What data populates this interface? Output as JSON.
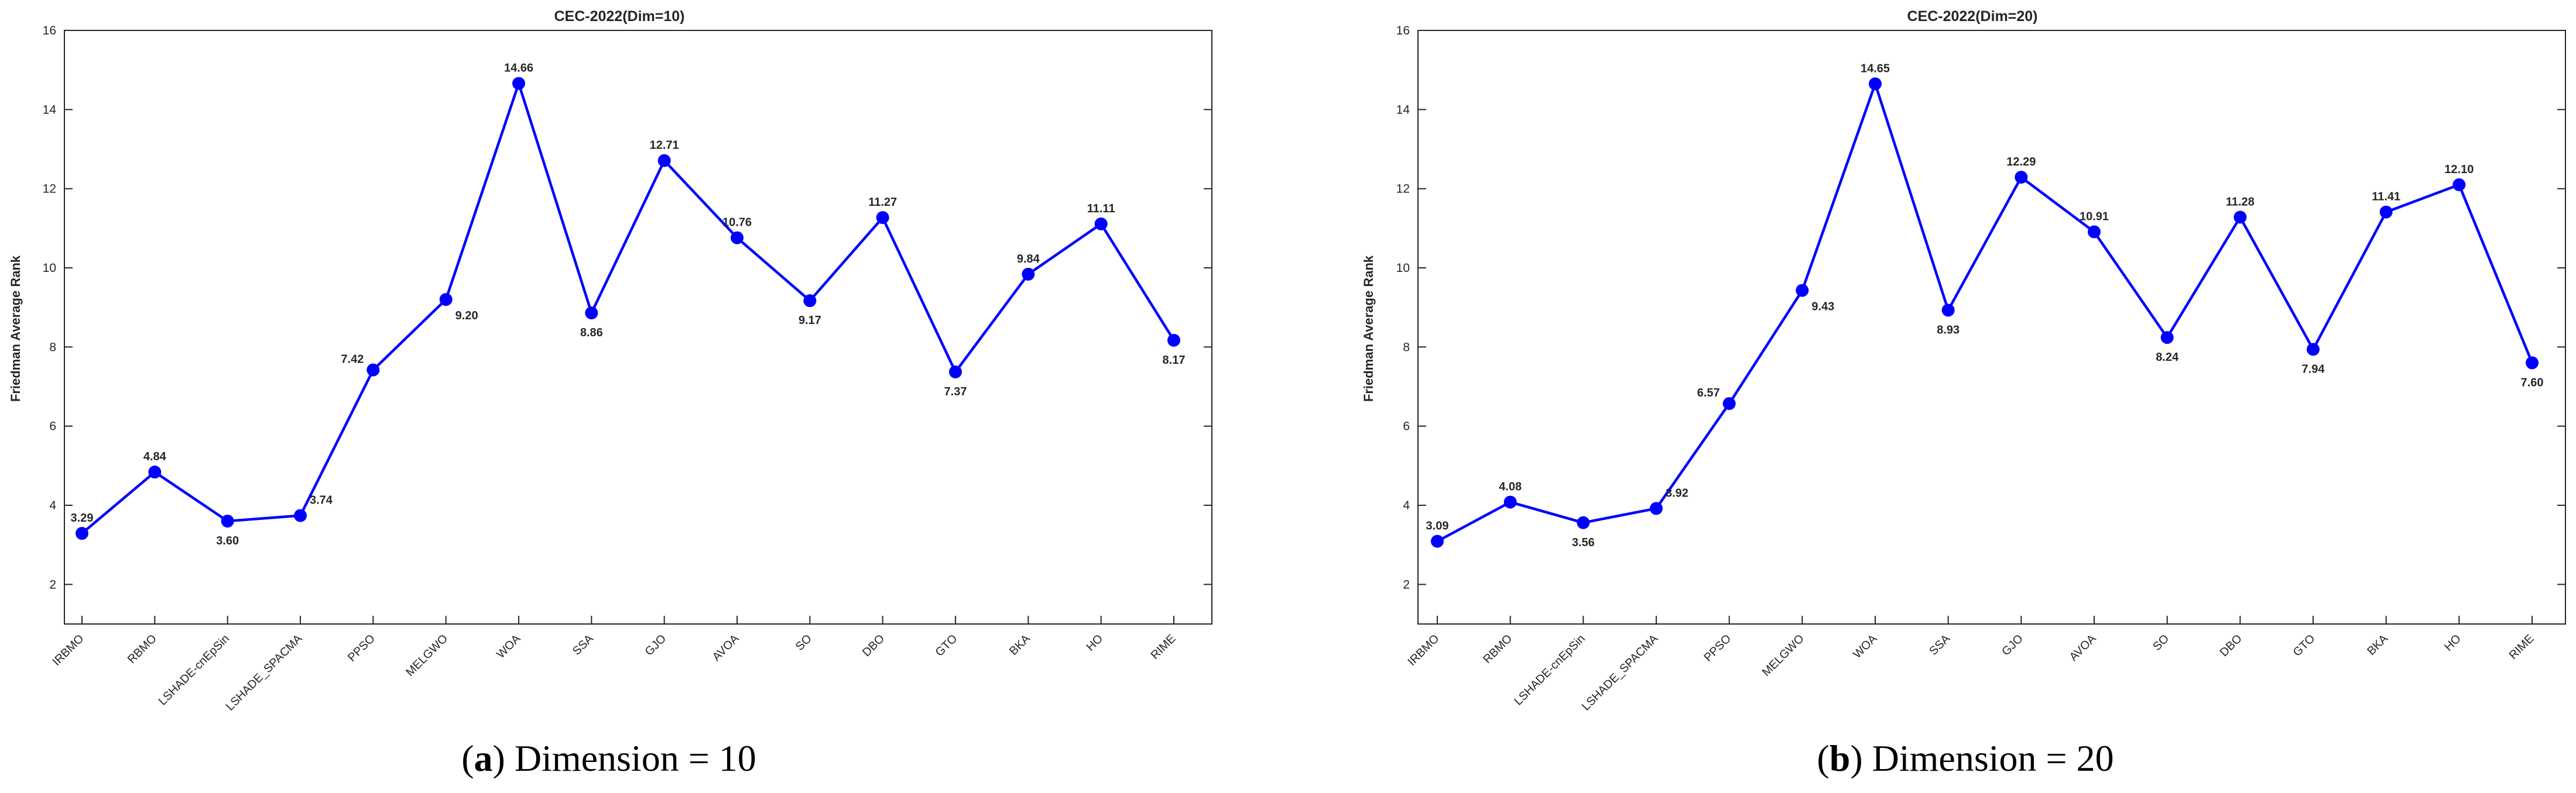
{
  "colors": {
    "series": "#0000ff",
    "axis": "#262626",
    "frame": "#262626"
  },
  "captions": [
    {
      "letter": "a",
      "text": ") Dimension = 10"
    },
    {
      "letter": "b",
      "text": ") Dimension = 20"
    }
  ],
  "chart_data": [
    {
      "type": "line",
      "title": "CEC-2022(Dim=10)",
      "xlabel": "",
      "ylabel": "Friedman Average Rank",
      "ylim": [
        1,
        16
      ],
      "yticks": [
        2,
        4,
        6,
        8,
        10,
        12,
        14,
        16
      ],
      "grid": false,
      "categories": [
        "IRBMO",
        "RBMO",
        "LSHADE-cnEpSin",
        "LSHADE_SPACMA",
        "PPSO",
        "MELGWO",
        "WOA",
        "SSA",
        "GJO",
        "AVOA",
        "SO",
        "DBO",
        "GTO",
        "BKA",
        "HO",
        "RIME"
      ],
      "values": [
        3.29,
        4.84,
        3.6,
        3.74,
        7.42,
        9.2,
        14.66,
        8.86,
        12.71,
        10.76,
        9.17,
        11.27,
        7.37,
        9.84,
        11.11,
        8.17
      ],
      "labels": [
        "3.29",
        "4.84",
        "3.60",
        "3.74",
        "7.42",
        "9.20",
        "14.66",
        "8.86",
        "12.71",
        "10.76",
        "9.17",
        "11.27",
        "7.37",
        "9.84",
        "11.11",
        "8.17"
      ]
    },
    {
      "type": "line",
      "title": "CEC-2022(Dim=20)",
      "xlabel": "",
      "ylabel": "Friedman Average Rank",
      "ylim": [
        1,
        16
      ],
      "yticks": [
        2,
        4,
        6,
        8,
        10,
        12,
        14,
        16
      ],
      "grid": false,
      "categories": [
        "IRBMO",
        "RBMO",
        "LSHADE-cnEpSin",
        "LSHADE_SPACMA",
        "PPSO",
        "MELGWO",
        "WOA",
        "SSA",
        "GJO",
        "AVOA",
        "SO",
        "DBO",
        "GTO",
        "BKA",
        "HO",
        "RIME"
      ],
      "values": [
        3.09,
        4.08,
        3.56,
        3.92,
        6.57,
        9.43,
        14.65,
        8.93,
        12.29,
        10.91,
        8.24,
        11.28,
        7.94,
        11.41,
        12.1,
        7.6
      ],
      "labels": [
        "3.09",
        "4.08",
        "3.56",
        "3.92",
        "6.57",
        "9.43",
        "14.65",
        "8.93",
        "12.29",
        "10.91",
        "8.24",
        "11.28",
        "7.94",
        "11.41",
        "12.10",
        "7.60"
      ]
    }
  ]
}
